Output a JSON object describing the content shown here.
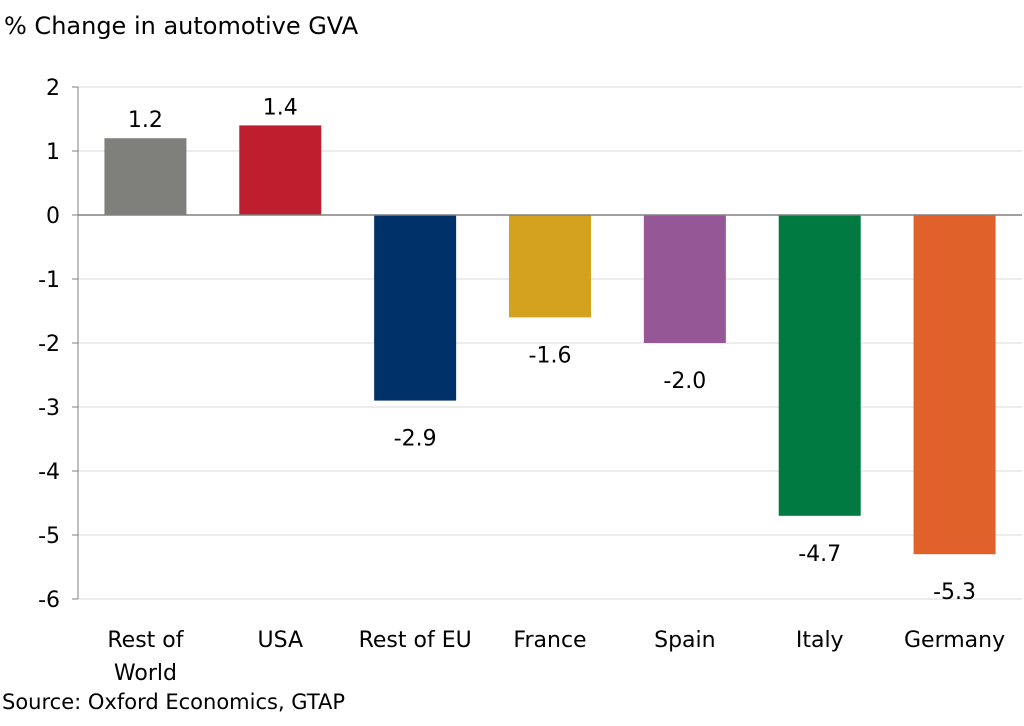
{
  "chart_data": {
    "type": "bar",
    "title": "% Change in automotive GVA",
    "source": "Source: Oxford Economics, GTAP",
    "categories": [
      {
        "label": "Rest of World",
        "lines": [
          "Rest of",
          "World"
        ]
      },
      {
        "label": "USA",
        "lines": [
          "USA"
        ]
      },
      {
        "label": "Rest of EU",
        "lines": [
          "Rest of EU"
        ]
      },
      {
        "label": "France",
        "lines": [
          "France"
        ]
      },
      {
        "label": "Spain",
        "lines": [
          "Spain"
        ]
      },
      {
        "label": "Italy",
        "lines": [
          "Italy"
        ]
      },
      {
        "label": "Germany",
        "lines": [
          "Germany"
        ]
      }
    ],
    "values": [
      1.2,
      1.4,
      -2.9,
      -1.6,
      -2.0,
      -4.7,
      -5.3
    ],
    "value_labels": [
      "1.2",
      "1.4",
      "-2.9",
      "-1.6",
      "-2.0",
      "-4.7",
      "-5.3"
    ],
    "colors": [
      "#7f7f7b",
      "#be1e2d",
      "#003169",
      "#d4a21f",
      "#955795",
      "#007a40",
      "#e0622a"
    ],
    "ylim": [
      -6,
      2
    ],
    "yticks": [
      2,
      1,
      0,
      -1,
      -2,
      -3,
      -4,
      -5,
      -6
    ],
    "xlabel": "",
    "ylabel": "",
    "grid": true,
    "legend": "none"
  }
}
